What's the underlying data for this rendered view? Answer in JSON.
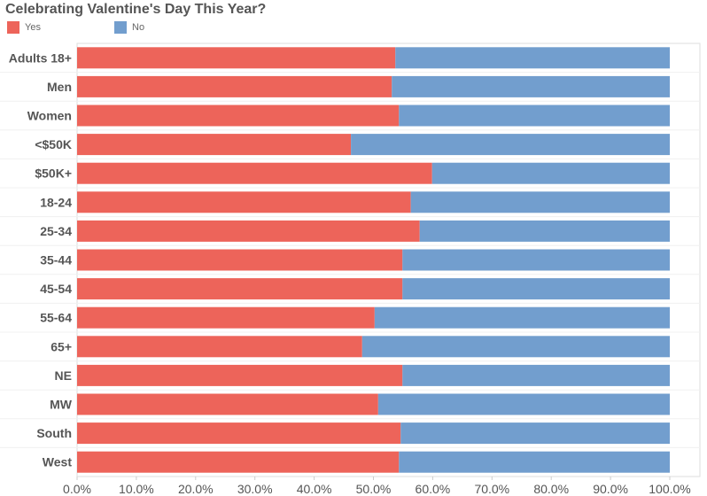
{
  "chart_data": {
    "type": "bar",
    "orientation": "horizontal",
    "stacked": true,
    "title": "Celebrating Valentine's Day This Year?",
    "categories": [
      "Adults 18+",
      "Men",
      "Women",
      "<$50K",
      "$50K+",
      "18-24",
      "25-34",
      "35-44",
      "45-54",
      "55-64",
      "65+",
      "NE",
      "MW",
      "South",
      "West"
    ],
    "series": [
      {
        "name": "Yes",
        "color": "#ed645a",
        "values": [
          53.7,
          53.1,
          54.3,
          46.2,
          59.9,
          56.3,
          57.8,
          54.9,
          54.9,
          50.2,
          48.1,
          54.9,
          50.8,
          54.6,
          54.3
        ]
      },
      {
        "name": "No",
        "color": "#729ece",
        "values": [
          46.3,
          46.9,
          45.7,
          53.8,
          40.1,
          43.7,
          42.2,
          45.1,
          45.1,
          49.8,
          51.9,
          45.1,
          49.2,
          45.4,
          45.7
        ]
      }
    ],
    "xlim": [
      0,
      100
    ],
    "xticks": [
      "0.0%",
      "10.0%",
      "20.0%",
      "30.0%",
      "40.0%",
      "50.0%",
      "60.0%",
      "70.0%",
      "80.0%",
      "90.0%",
      "100.0%"
    ],
    "legend_position": "top-left"
  }
}
